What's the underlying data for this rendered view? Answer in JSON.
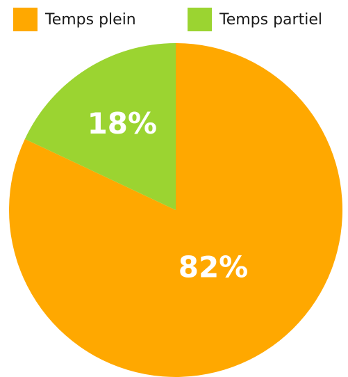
{
  "chart_data": {
    "type": "pie",
    "categories": [
      "Temps plein",
      "Temps partiel"
    ],
    "values": [
      82,
      18
    ],
    "value_labels": [
      "82%",
      "18%"
    ],
    "colors": [
      "#ffa800",
      "#9bd431"
    ],
    "legend": "top"
  }
}
